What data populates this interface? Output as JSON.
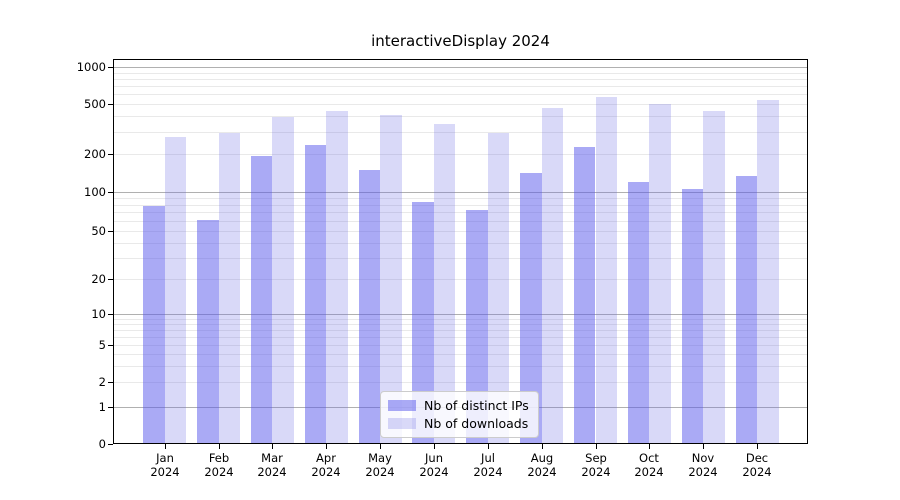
{
  "figure": {
    "title": "interactiveDisplay 2024"
  },
  "chart_data": {
    "type": "bar",
    "title": "interactiveDisplay 2024",
    "categories": [
      "Jan 2024",
      "Feb 2024",
      "Mar 2024",
      "Apr 2024",
      "May 2024",
      "Jun 2024",
      "Jul 2024",
      "Aug 2024",
      "Sep 2024",
      "Oct 2024",
      "Nov 2024",
      "Dec 2024"
    ],
    "x_tick_month_lines": [
      "Jan",
      "Feb",
      "Mar",
      "Apr",
      "May",
      "Jun",
      "Jul",
      "Aug",
      "Sep",
      "Oct",
      "Nov",
      "Dec"
    ],
    "x_tick_year_line": "2024",
    "series": [
      {
        "name": "Nb of distinct IPs",
        "fill": "rgba(85,85,235,0.5)",
        "color_hex": "#aaaaf5",
        "values": [
          78,
          61,
          194,
          235,
          150,
          84,
          73,
          141,
          226,
          121,
          106,
          135
        ]
      },
      {
        "name": "Nb of downloads",
        "fill": "rgba(103,103,227,0.25)",
        "color_hex": "#d9d9f8",
        "values": [
          271,
          295,
          392,
          443,
          409,
          346,
          293,
          464,
          569,
          500,
          440,
          534
        ]
      }
    ],
    "yscale": "asinh-log",
    "yticks": [
      0,
      1,
      2,
      5,
      10,
      20,
      50,
      100,
      200,
      500,
      1000
    ],
    "ylim": [
      0,
      1150
    ],
    "xlabel": "",
    "ylabel": "",
    "grid": {
      "major_values": [
        1,
        10,
        100,
        1000
      ],
      "major_color": "#b0b0b0",
      "minor_color": "#e9e9e9"
    },
    "legend_position": "lower center"
  }
}
